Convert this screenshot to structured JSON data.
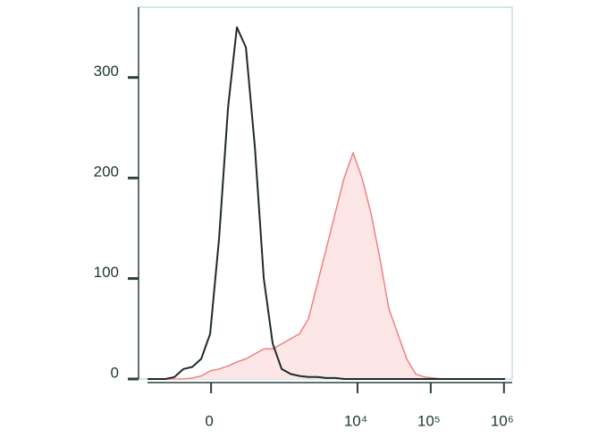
{
  "chart_data": {
    "type": "histogram-overlay",
    "x": [
      -720,
      -536,
      -396,
      -284,
      -197,
      -125,
      -63,
      -6,
      51,
      112,
      181,
      266,
      372,
      506,
      680,
      910,
      1210,
      1608,
      2132,
      2828,
      3752,
      4960,
      6560,
      8700,
      11520,
      15260,
      20220,
      26780,
      35480,
      47000,
      62200,
      82400,
      109200,
      144400,
      191400,
      253600,
      336000,
      444800,
      589200,
      780400,
      1033600
    ],
    "series": [
      {
        "color": "#1e2b2b",
        "fill": "none",
        "values": [
          0,
          0,
          0,
          2,
          10,
          12,
          20,
          45,
          140,
          270,
          350,
          330,
          230,
          100,
          35,
          10,
          5,
          3,
          2,
          2,
          1,
          1,
          0,
          0,
          0,
          0,
          0,
          0,
          0,
          0,
          0,
          0,
          0,
          0,
          0,
          0,
          0,
          0,
          0,
          0,
          0
        ]
      },
      {
        "color": "#f08080",
        "fill": "#fde6e6",
        "values": [
          0,
          0,
          0,
          0,
          0,
          1,
          3,
          8,
          10,
          13,
          17,
          20,
          25,
          30,
          30,
          35,
          40,
          45,
          60,
          95,
          130,
          165,
          200,
          225,
          200,
          165,
          120,
          70,
          45,
          20,
          5,
          2,
          1,
          0,
          0,
          0,
          0,
          0,
          0,
          0,
          0
        ]
      }
    ],
    "xscale": "arcsinh",
    "xlim": [
      -725,
      1260000
    ],
    "xticks": [
      0,
      {
        "value": 10000,
        "label": "10⁴"
      },
      {
        "value": 100000,
        "label": "10⁵"
      },
      {
        "value": 1000000,
        "label": "10⁶"
      }
    ],
    "ylim": [
      0,
      370
    ],
    "yticks": [
      0,
      100,
      200,
      300
    ]
  }
}
